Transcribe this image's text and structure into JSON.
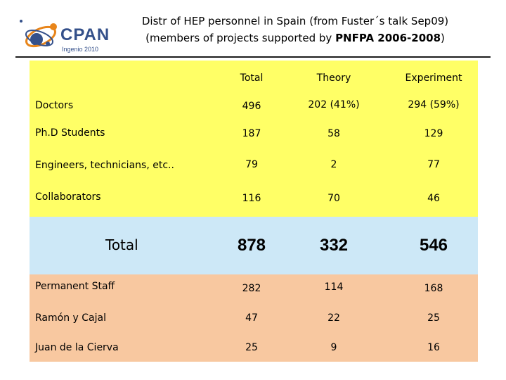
{
  "logo": {
    "name": "CPAN",
    "subtitle": "Ingenio 2010"
  },
  "title": {
    "line1": "Distr of HEP personnel in Spain (from Fuster´s talk Sep09)",
    "line2_prefix": "(members of projects supported by ",
    "line2_bold": "PNFPA 2006-2008",
    "line2_suffix": ")"
  },
  "table": {
    "headers": [
      "Total",
      "Theory",
      "Experiment"
    ],
    "rows_top": [
      {
        "label": "Doctors",
        "total": "496",
        "theory": "202 (41%)",
        "experiment": "294 (59%)"
      },
      {
        "label": "Ph.D Students",
        "total": "187",
        "theory": "58",
        "experiment": "129"
      },
      {
        "label": "Engineers, technicians, etc..",
        "total": "79",
        "theory": "2",
        "experiment": "77"
      },
      {
        "label": "Collaborators",
        "total": "116",
        "theory": "70",
        "experiment": "46"
      }
    ],
    "total_row": {
      "label": "Total",
      "total": "878",
      "theory": "332",
      "experiment": "546"
    },
    "rows_bottom": [
      {
        "label": "Permanent Staff",
        "total": "282",
        "theory": "114",
        "experiment": "168"
      },
      {
        "label": "Ramón y Cajal",
        "total": "47",
        "theory": "22",
        "experiment": "25"
      },
      {
        "label": "Juan de la Cierva",
        "total": "25",
        "theory": "9",
        "experiment": "16"
      }
    ]
  }
}
